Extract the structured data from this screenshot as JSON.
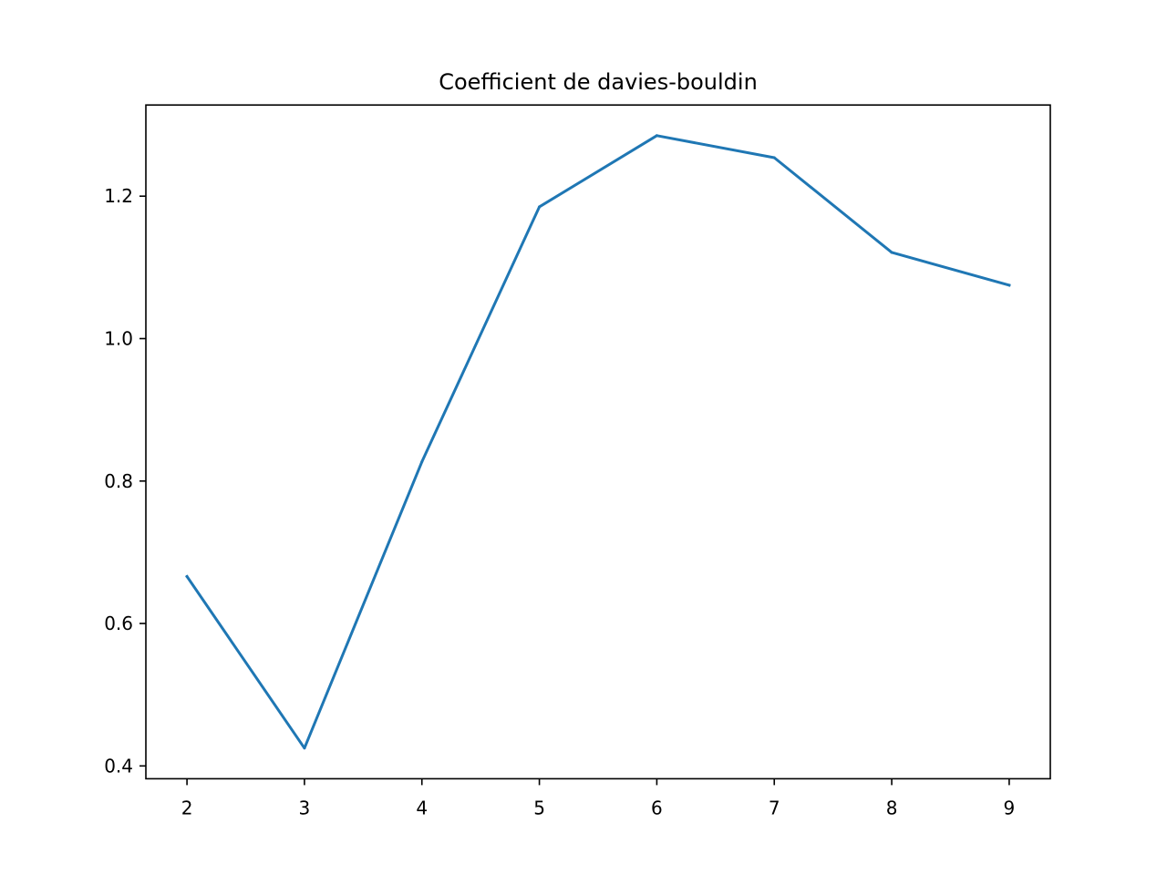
{
  "chart_data": {
    "type": "line",
    "title": "Coefficient de davies-bouldin",
    "xlabel": "",
    "ylabel": "",
    "x": [
      2,
      3,
      4,
      5,
      6,
      7,
      8,
      9
    ],
    "series": [
      {
        "values": [
          0.666,
          0.425,
          0.827,
          1.185,
          1.285,
          1.254,
          1.121,
          1.075
        ],
        "color": "#1f77b4"
      }
    ],
    "x_ticks": [
      2,
      3,
      4,
      5,
      6,
      7,
      8,
      9
    ],
    "x_tick_labels": [
      "2",
      "3",
      "4",
      "5",
      "6",
      "7",
      "8",
      "9"
    ],
    "y_ticks": [
      0.4,
      0.6,
      0.8,
      1.0,
      1.2
    ],
    "y_tick_labels": [
      "0.4",
      "0.6",
      "0.8",
      "1.0",
      "1.2"
    ],
    "xlim": [
      1.65,
      9.35
    ],
    "ylim": [
      0.382,
      1.328
    ],
    "grid": false,
    "legend": "none"
  }
}
